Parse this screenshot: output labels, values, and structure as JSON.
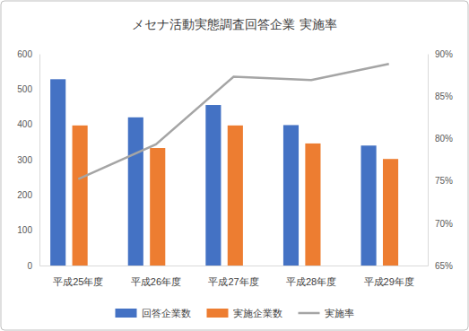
{
  "chart_data": {
    "type": "bar",
    "title": "メセナ活動実態調査回答企業 実施率",
    "categories": [
      "平成25年度",
      "平成26年度",
      "平成27年度",
      "平成28年度",
      "平成29年度"
    ],
    "series": [
      {
        "name": "回答企業数",
        "color": "#4472c4",
        "type": "bar",
        "values": [
          528,
          420,
          455,
          398,
          340
        ]
      },
      {
        "name": "実施企業数",
        "color": "#ed7d31",
        "type": "bar",
        "values": [
          397,
          333,
          397,
          346,
          302
        ]
      },
      {
        "name": "実施率",
        "color": "#a5a5a5",
        "type": "line",
        "axis": "y2",
        "values": [
          75.2,
          79.3,
          87.3,
          86.9,
          88.8
        ]
      }
    ],
    "ylim": [
      0,
      600
    ],
    "yticks": [
      0,
      100,
      200,
      300,
      400,
      500,
      600
    ],
    "y2lim": [
      65,
      90
    ],
    "y2ticks": [
      {
        "value": 65,
        "label": "65%"
      },
      {
        "value": 70,
        "label": "70%"
      },
      {
        "value": 75,
        "label": "75%"
      },
      {
        "value": 80,
        "label": "80%"
      },
      {
        "value": 85,
        "label": "85%"
      },
      {
        "value": 90,
        "label": "90%"
      }
    ],
    "grid": false,
    "legend": "bottom"
  }
}
